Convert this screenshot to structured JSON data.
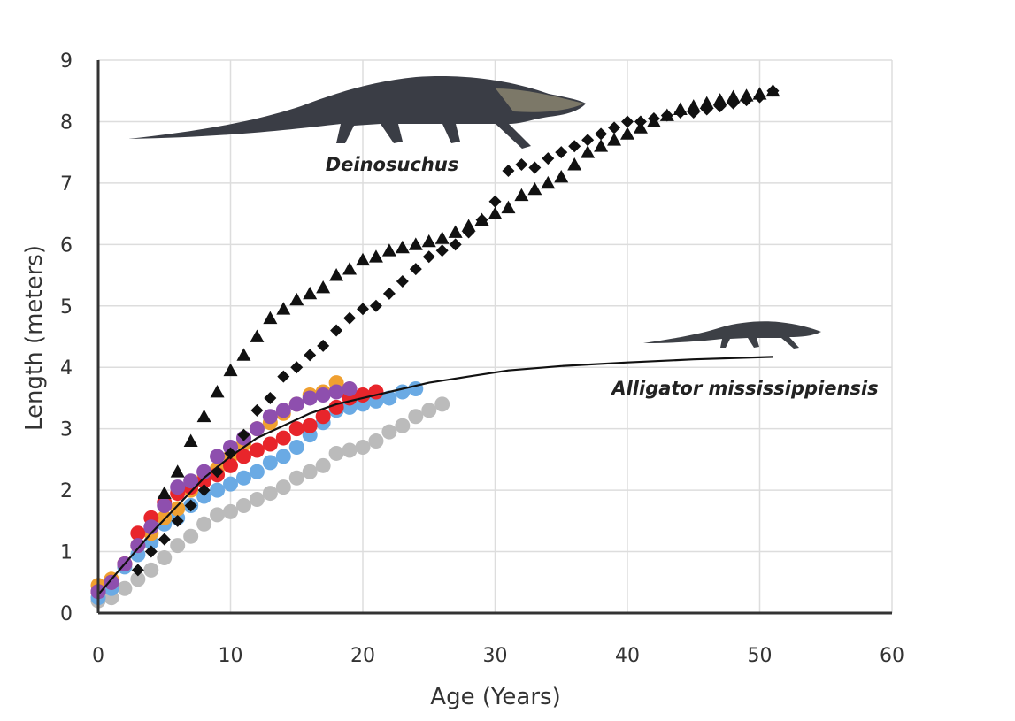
{
  "chart_data": {
    "type": "scatter",
    "title": "",
    "xlabel": "Age (Years)",
    "ylabel": "Length (meters)",
    "xlim": [
      0,
      60
    ],
    "ylim": [
      0,
      9
    ],
    "xticks": [
      "0",
      "10",
      "20",
      "30",
      "40",
      "50",
      "60"
    ],
    "yticks": [
      "0",
      "1",
      "2",
      "3",
      "4",
      "5",
      "6",
      "7",
      "8",
      "9"
    ],
    "grid": true,
    "legend": "none",
    "annotations": [
      {
        "text": "Deinosuchus",
        "style": "bold-italic",
        "x": 21,
        "y": 7.3
      },
      {
        "text": "Alligator mississippiensis",
        "style": "bold-italic",
        "x": 41,
        "y": 3.6
      }
    ],
    "illustrations": [
      {
        "name": "deinosuchus-silhouette",
        "x_range": [
          2,
          37
        ],
        "y_range": [
          7.8,
          8.8
        ]
      },
      {
        "name": "alligator-silhouette",
        "x_range": [
          41,
          55
        ],
        "y_range": [
          4.3,
          4.7
        ]
      }
    ],
    "series": [
      {
        "name": "Deinosuchus (triangles)",
        "marker": "triangle",
        "color": "#111111",
        "x": [
          5,
          6,
          7,
          8,
          9,
          10,
          11,
          12,
          13,
          14,
          15,
          16,
          17,
          18,
          19,
          20,
          21,
          22,
          23,
          24,
          25,
          26,
          27,
          28,
          29,
          30,
          31,
          32,
          33,
          34,
          35,
          36,
          37,
          38,
          39,
          40,
          41,
          42,
          43,
          44,
          45,
          46,
          47,
          48,
          49,
          50,
          51
        ],
        "y": [
          1.95,
          2.3,
          2.8,
          3.2,
          3.6,
          3.95,
          4.2,
          4.5,
          4.8,
          4.95,
          5.1,
          5.2,
          5.3,
          5.5,
          5.6,
          5.75,
          5.8,
          5.9,
          5.95,
          6.0,
          6.05,
          6.1,
          6.2,
          6.3,
          6.4,
          6.5,
          6.6,
          6.8,
          6.9,
          7.0,
          7.1,
          7.3,
          7.5,
          7.6,
          7.7,
          7.8,
          7.9,
          8.0,
          8.1,
          8.2,
          8.25,
          8.3,
          8.35,
          8.4,
          8.42,
          8.45,
          8.5
        ]
      },
      {
        "name": "Deinosuchus (diamonds)",
        "marker": "diamond",
        "color": "#111111",
        "x": [
          3,
          4,
          5,
          6,
          7,
          8,
          9,
          10,
          11,
          12,
          13,
          14,
          15,
          16,
          17,
          18,
          19,
          20,
          21,
          22,
          23,
          24,
          25,
          26,
          27,
          28,
          29,
          30,
          31,
          32,
          33,
          34,
          35,
          36,
          37,
          38,
          39,
          40,
          41,
          42,
          43,
          44,
          45,
          46,
          47,
          48,
          49,
          50,
          51
        ],
        "y": [
          0.7,
          1.0,
          1.2,
          1.5,
          1.75,
          2.0,
          2.3,
          2.6,
          2.9,
          3.3,
          3.5,
          3.85,
          4.0,
          4.2,
          4.35,
          4.6,
          4.8,
          4.95,
          5.0,
          5.2,
          5.4,
          5.6,
          5.8,
          5.9,
          6.0,
          6.2,
          6.4,
          6.7,
          7.2,
          7.3,
          7.25,
          7.4,
          7.5,
          7.6,
          7.7,
          7.8,
          7.9,
          8.0,
          8.0,
          8.05,
          8.1,
          8.15,
          8.15,
          8.2,
          8.25,
          8.3,
          8.35,
          8.4,
          8.5
        ]
      },
      {
        "name": "Alligator mississippiensis growth curve",
        "marker": "line",
        "color": "#111111",
        "x": [
          0,
          2,
          4,
          6,
          8,
          10,
          12,
          14,
          16,
          18,
          20,
          22,
          25,
          28,
          31,
          35,
          40,
          45,
          51
        ],
        "y": [
          0.3,
          0.8,
          1.3,
          1.75,
          2.2,
          2.55,
          2.85,
          3.05,
          3.25,
          3.4,
          3.5,
          3.6,
          3.75,
          3.85,
          3.95,
          4.02,
          4.08,
          4.13,
          4.17
        ]
      },
      {
        "name": "Purple",
        "marker": "circle",
        "color": "#8e4fae",
        "x": [
          0,
          1,
          2,
          3,
          4,
          5,
          6,
          7,
          8,
          9,
          10,
          11,
          12,
          13,
          14,
          15,
          16,
          17,
          18,
          19
        ],
        "y": [
          0.35,
          0.5,
          0.8,
          1.1,
          1.4,
          1.75,
          2.05,
          2.15,
          2.3,
          2.55,
          2.7,
          2.85,
          3.0,
          3.2,
          3.3,
          3.4,
          3.5,
          3.55,
          3.6,
          3.65
        ]
      },
      {
        "name": "Red",
        "marker": "circle",
        "color": "#e8252b",
        "x": [
          0,
          1,
          2,
          3,
          4,
          5,
          6,
          7,
          8,
          9,
          10,
          11,
          12,
          13,
          14,
          15,
          16,
          17,
          18,
          19,
          20,
          21
        ],
        "y": [
          0.35,
          0.5,
          0.8,
          1.3,
          1.55,
          1.8,
          1.95,
          2.05,
          2.15,
          2.25,
          2.4,
          2.55,
          2.65,
          2.75,
          2.85,
          3.0,
          3.05,
          3.2,
          3.35,
          3.5,
          3.55,
          3.6
        ]
      },
      {
        "name": "Orange",
        "marker": "circle",
        "color": "#f0a030",
        "x": [
          0,
          1,
          2,
          3,
          4,
          5,
          6,
          7,
          8,
          9,
          10,
          11,
          12,
          13,
          14,
          15,
          16,
          17,
          18
        ],
        "y": [
          0.45,
          0.55,
          0.8,
          1.1,
          1.3,
          1.55,
          1.7,
          2.0,
          2.2,
          2.35,
          2.55,
          2.75,
          3.0,
          3.1,
          3.25,
          3.4,
          3.55,
          3.6,
          3.75
        ]
      },
      {
        "name": "Blue",
        "marker": "circle",
        "color": "#6aaae4",
        "x": [
          0,
          1,
          2,
          3,
          4,
          5,
          6,
          7,
          8,
          9,
          10,
          11,
          12,
          13,
          14,
          15,
          16,
          17,
          18,
          19,
          20,
          21,
          22,
          23,
          24
        ],
        "y": [
          0.25,
          0.4,
          0.75,
          0.95,
          1.15,
          1.45,
          1.55,
          1.75,
          1.9,
          2.0,
          2.1,
          2.2,
          2.3,
          2.45,
          2.55,
          2.7,
          2.9,
          3.1,
          3.3,
          3.35,
          3.4,
          3.45,
          3.5,
          3.6,
          3.65
        ]
      },
      {
        "name": "Gray",
        "marker": "circle",
        "color": "#bbbbbb",
        "x": [
          0,
          1,
          2,
          3,
          4,
          5,
          6,
          7,
          8,
          9,
          10,
          11,
          12,
          13,
          14,
          15,
          16,
          17,
          18,
          19,
          20,
          21,
          22,
          23,
          24,
          25,
          26
        ],
        "y": [
          0.2,
          0.25,
          0.4,
          0.55,
          0.7,
          0.9,
          1.1,
          1.25,
          1.45,
          1.6,
          1.65,
          1.75,
          1.85,
          1.95,
          2.05,
          2.2,
          2.3,
          2.4,
          2.6,
          2.65,
          2.7,
          2.8,
          2.95,
          3.05,
          3.2,
          3.3,
          3.4
        ]
      }
    ]
  }
}
